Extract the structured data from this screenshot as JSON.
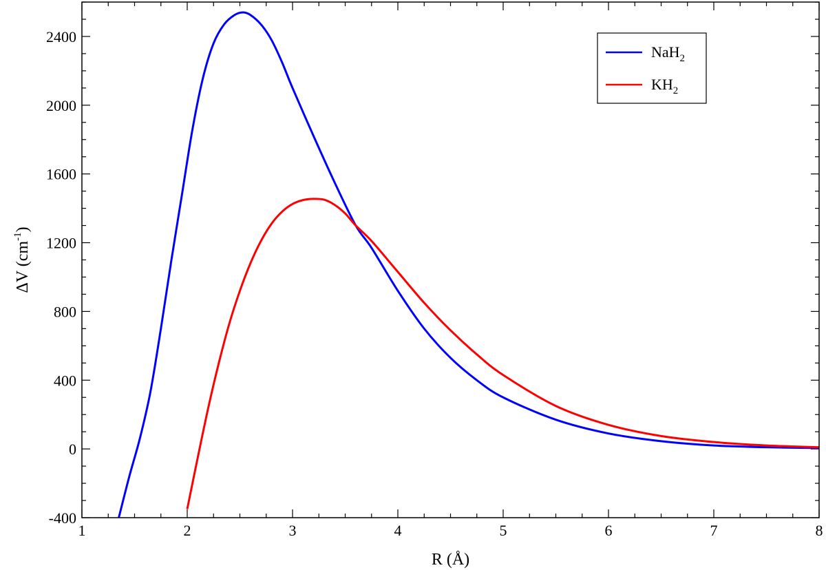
{
  "chart_data": {
    "type": "line",
    "title": "",
    "xlabel": "R  (Å)",
    "ylabel_main": "ΔV  (cm",
    "ylabel_sup": "-1",
    "ylabel_end": ")",
    "xlim": [
      1,
      8
    ],
    "ylim": [
      -400,
      2600
    ],
    "xticks": [
      1,
      2,
      3,
      4,
      5,
      6,
      7,
      8
    ],
    "xtick_labels": [
      "1",
      "2",
      "3",
      "4",
      "5",
      "6",
      "7",
      "8"
    ],
    "yticks": [
      -400,
      0,
      400,
      800,
      1200,
      1600,
      2000,
      2400
    ],
    "ytick_labels": [
      "-400",
      "0",
      "400",
      "800",
      "1200",
      "1600",
      "2000",
      "2400"
    ],
    "grid": false,
    "legend_position": "top-right",
    "series": [
      {
        "name_base": "NaH",
        "name_sub": "2",
        "color": "#0000ff",
        "x": [
          1.35,
          1.45,
          1.55,
          1.65,
          1.75,
          1.85,
          1.95,
          2.05,
          2.15,
          2.25,
          2.35,
          2.45,
          2.53,
          2.6,
          2.7,
          2.8,
          2.9,
          3.0,
          3.2,
          3.4,
          3.6,
          3.75,
          4.0,
          4.25,
          4.5,
          4.75,
          5.0,
          5.5,
          6.0,
          6.5,
          7.0,
          7.5,
          8.0
        ],
        "y": [
          -400,
          -160,
          60,
          330,
          700,
          1100,
          1480,
          1860,
          2160,
          2360,
          2470,
          2525,
          2540,
          2525,
          2470,
          2380,
          2250,
          2100,
          1820,
          1550,
          1300,
          1170,
          920,
          700,
          530,
          400,
          300,
          170,
          90,
          45,
          20,
          10,
          5
        ]
      },
      {
        "name_base": "KH",
        "name_sub": "2",
        "color": "#ff0000",
        "x": [
          2.0,
          2.1,
          2.2,
          2.3,
          2.4,
          2.5,
          2.6,
          2.7,
          2.8,
          2.9,
          3.0,
          3.1,
          3.2,
          3.3,
          3.4,
          3.5,
          3.6,
          3.75,
          4.0,
          4.25,
          4.5,
          4.75,
          5.0,
          5.5,
          6.0,
          6.5,
          7.0,
          7.5,
          8.0
        ],
        "y": [
          -350,
          -50,
          240,
          500,
          730,
          920,
          1080,
          1210,
          1310,
          1380,
          1425,
          1448,
          1455,
          1450,
          1420,
          1370,
          1300,
          1210,
          1030,
          850,
          690,
          550,
          430,
          250,
          140,
          75,
          40,
          20,
          10
        ]
      }
    ]
  }
}
